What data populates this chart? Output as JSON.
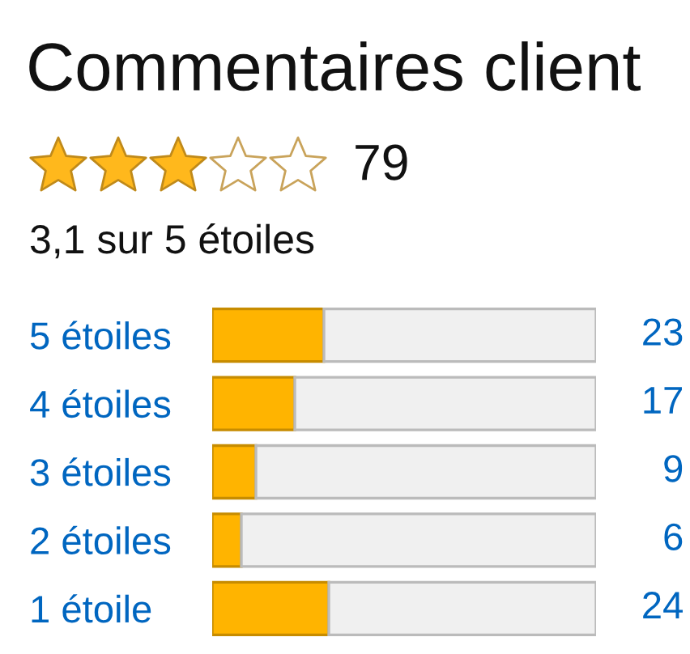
{
  "chart_data": {
    "type": "bar",
    "orientation": "horizontal",
    "stacked": true,
    "title": "Commentaires client",
    "annotations": [
      "79",
      "3,1 sur 5 étoiles"
    ],
    "categories": [
      "5 étoiles",
      "4 étoiles",
      "3 étoiles",
      "2 étoiles",
      "1 étoile"
    ],
    "series": [
      {
        "color": "#ffb400",
        "values": [
          23,
          17,
          9,
          6,
          24
        ],
        "value_labels": [
          "23",
          "17",
          "9",
          "6",
          "24"
        ]
      },
      {
        "color": "#f0f0f0",
        "values": [
          56,
          62,
          70,
          73,
          55
        ]
      }
    ],
    "xlim": [
      0,
      79
    ],
    "tick_labels": "y",
    "grid": false
  }
}
